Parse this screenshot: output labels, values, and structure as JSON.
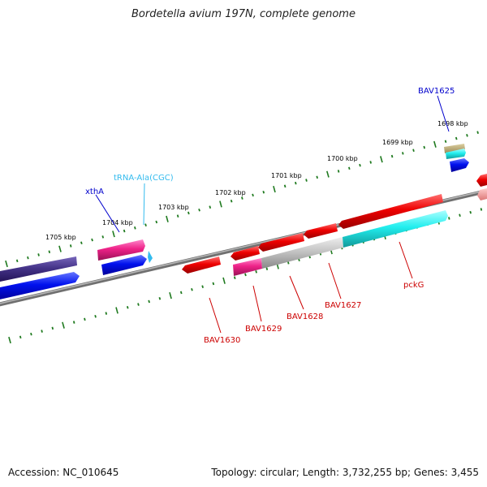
{
  "title": "Bordetella avium 197N, complete genome",
  "footer": {
    "accession": "Accession: NC_010645",
    "stats": "Topology: circular; Length: 3,732,255 bp; Genes: 3,455"
  },
  "ticks": [
    "1698 kbp",
    "1699 kbp",
    "1700 kbp",
    "1701 kbp",
    "1702 kbp",
    "1703 kbp",
    "1704 kbp",
    "1705 kbp"
  ],
  "labels": {
    "bav1625": "BAV1625",
    "xtha": "xthA",
    "trna": "tRNA-Ala(CGC)",
    "bav1630": "BAV1630",
    "bav1629": "BAV1629",
    "bav1628": "BAV1628",
    "bav1627": "BAV1627",
    "pckg": "pckG"
  },
  "colors": {
    "blue_label": "#0000cc",
    "red_label": "#cc0000",
    "cyan_label": "#33bbee",
    "tick": "#1f7a1f",
    "backbone": "#808080"
  }
}
